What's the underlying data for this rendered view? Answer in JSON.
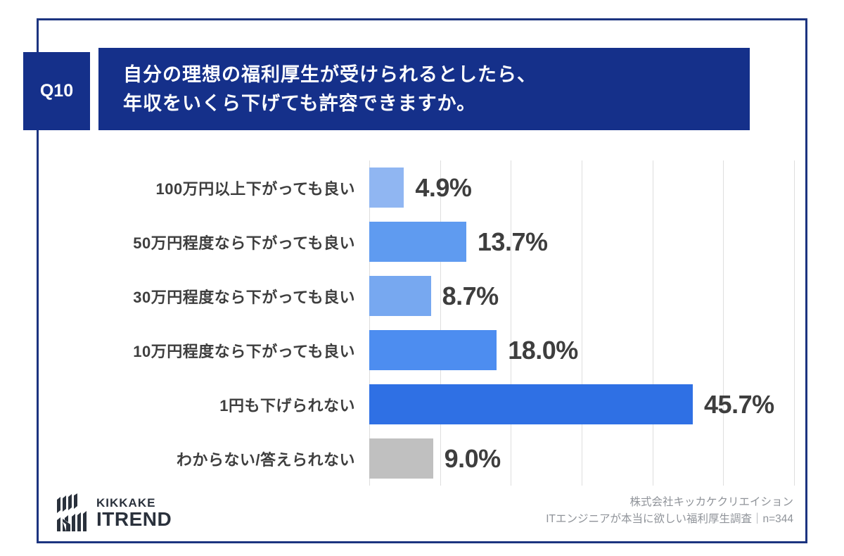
{
  "header": {
    "question_number": "Q10",
    "title_line1": "自分の理想の福利厚生が受けられるとしたら、",
    "title_line2": "年収をいくら下げても許容できますか。"
  },
  "chart_data": {
    "type": "bar",
    "orientation": "horizontal",
    "title": "",
    "xlabel": "",
    "ylabel": "",
    "categories": [
      "100万円以上下がっても良い",
      "50万円程度なら下がっても良い",
      "30万円程度なら下がっても良い",
      "10万円程度なら下がっても良い",
      "1円も下げられない",
      "わからない/答えられない"
    ],
    "values": [
      4.9,
      13.7,
      8.7,
      18.0,
      45.7,
      9.0
    ],
    "value_labels": [
      "4.9%",
      "13.7%",
      "8.7%",
      "18.0%",
      "45.7%",
      "9.0%"
    ],
    "bar_colors": [
      "#90B6F2",
      "#5F9BF0",
      "#77A8F0",
      "#4D8DF0",
      "#2F70E4",
      "#C0C0C0"
    ],
    "xlim": [
      0,
      60
    ],
    "gridline_step": 10,
    "grid": true,
    "legend_position": "none"
  },
  "footer": {
    "logo_top": "KIKKAKE",
    "logo_bottom": "ITREND",
    "credit_line1": "株式会社キッカケクリエイション",
    "credit_line2": "ITエンジニアが本当に欲しい福利厚生調査｜n=344"
  },
  "colors": {
    "navy": "#15308A",
    "card_border": "#1C3480",
    "grid": "#DEDEDE",
    "text": "#3E3E3E",
    "footer_text": "#8F9399",
    "logo": "#2A313C"
  }
}
